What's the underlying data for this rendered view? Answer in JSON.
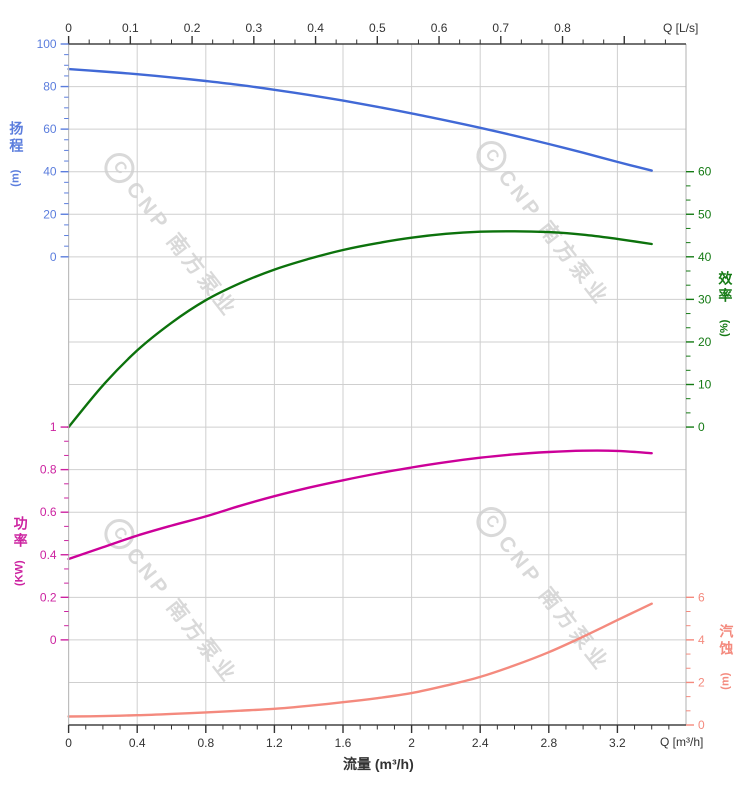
{
  "watermark": {
    "logo_char": "C",
    "text": "CNP 南方泵业"
  },
  "labels": {
    "x_axis_title": "流量 (m³/h)",
    "x_top_unit": "Q [L/s]",
    "x_bottom_unit": "Q [m³/h]"
  },
  "colors": {
    "grid": "#cfcfcf",
    "frame_dark": "#444444",
    "spine_gray": "#bdbdbd",
    "axis_text": "#333333",
    "head_curve": "#4169d6",
    "head_label": "#5b7ddd",
    "efficiency_curve": "#0c720c",
    "efficiency_label": "#147a14",
    "power_curve": "#cc0099",
    "power_label": "#cc22a0",
    "npsh_curve": "#f48a7e",
    "npsh_label": "#f48a7e"
  },
  "chart_data": {
    "type": "line",
    "title": "",
    "grid": true,
    "legend": "none",
    "x_bottom": {
      "title": "流量 (m³/h)",
      "unit_label": "Q [m³/h]",
      "min": 0,
      "max": 3.6,
      "major_step": 0.4,
      "minor_per_gap": 3,
      "tick_labels": [
        "0",
        "0.4",
        "0.8",
        "1.2",
        "1.6",
        "2",
        "2.4",
        "2.8",
        "3.2"
      ]
    },
    "x_top": {
      "unit_label": "Q [L/s]",
      "min": 0,
      "max": 1.0,
      "major_step": 0.1,
      "minor_per_gap": 2,
      "tick_labels": [
        "0",
        "0.1",
        "0.2",
        "0.3",
        "0.4",
        "0.5",
        "0.6",
        "0.7",
        "0.8"
      ]
    },
    "y_axes": [
      {
        "id": "head",
        "title": "扬程",
        "unit": "(m)",
        "side": "left",
        "color": "#5b7ddd",
        "top_value": 100,
        "bottom_value": 0,
        "top_row": 0,
        "bottom_row": 5,
        "tick_labels": [
          "100",
          "80",
          "60",
          "40",
          "20",
          "0"
        ],
        "minor_per_gap": 3
      },
      {
        "id": "efficiency",
        "title": "效率",
        "unit": "(%)",
        "side": "right",
        "color": "#147a14",
        "top_value": 60,
        "bottom_value": 0,
        "top_row": 3,
        "bottom_row": 9,
        "tick_labels": [
          "60",
          "50",
          "40",
          "30",
          "20",
          "10",
          "0"
        ],
        "minor_per_gap": 2
      },
      {
        "id": "power",
        "title": "功率",
        "unit": "(KW)",
        "side": "left",
        "color": "#cc22a0",
        "top_value": 1,
        "bottom_value": 0,
        "top_row": 9,
        "bottom_row": 14,
        "tick_labels": [
          "1",
          "0.8",
          "0.6",
          "0.4",
          "0.2",
          "0"
        ],
        "minor_per_gap": 2
      },
      {
        "id": "npsh",
        "title": "汽蚀",
        "unit": "(m)",
        "side": "right",
        "color": "#f48a7e",
        "top_value": 6,
        "bottom_value": 0,
        "top_row": 13,
        "bottom_row": 16,
        "tick_labels": [
          "6",
          "4",
          "2",
          "0"
        ],
        "minor_per_gap": 2
      }
    ],
    "series": [
      {
        "name": "head",
        "axis": "head",
        "color": "#4169d6",
        "x": [
          0,
          0.2,
          0.4,
          0.6,
          0.8,
          1.0,
          1.2,
          1.4,
          1.6,
          1.8,
          2.0,
          2.2,
          2.4,
          2.6,
          2.8,
          3.0,
          3.2,
          3.4
        ],
        "y": [
          88.2,
          87.1,
          85.8,
          84.3,
          82.6,
          80.7,
          78.5,
          76.1,
          73.4,
          70.5,
          67.4,
          64.1,
          60.6,
          56.9,
          53.0,
          48.9,
          44.6,
          40.5
        ]
      },
      {
        "name": "efficiency",
        "axis": "efficiency",
        "color": "#0c720c",
        "x": [
          0,
          0.2,
          0.4,
          0.6,
          0.8,
          1.0,
          1.2,
          1.4,
          1.6,
          1.8,
          2.0,
          2.2,
          2.4,
          2.6,
          2.8,
          3.0,
          3.2,
          3.4
        ],
        "y": [
          0,
          9.8,
          18.0,
          24.5,
          29.8,
          33.8,
          37.0,
          39.5,
          41.6,
          43.2,
          44.5,
          45.4,
          45.9,
          46.0,
          45.8,
          45.2,
          44.2,
          43.0
        ]
      },
      {
        "name": "power",
        "axis": "power",
        "color": "#cc0099",
        "x": [
          0,
          0.2,
          0.4,
          0.6,
          0.8,
          1.0,
          1.2,
          1.4,
          1.6,
          1.8,
          2.0,
          2.2,
          2.4,
          2.6,
          2.8,
          3.0,
          3.2,
          3.4
        ],
        "y": [
          0.38,
          0.435,
          0.49,
          0.537,
          0.58,
          0.63,
          0.675,
          0.715,
          0.75,
          0.782,
          0.81,
          0.835,
          0.856,
          0.872,
          0.883,
          0.889,
          0.888,
          0.877
        ]
      },
      {
        "name": "npsh",
        "axis": "npsh",
        "color": "#f48a7e",
        "x": [
          0,
          0.2,
          0.4,
          0.6,
          0.8,
          1.0,
          1.2,
          1.4,
          1.6,
          1.8,
          2.0,
          2.2,
          2.4,
          2.6,
          2.8,
          3.0,
          3.2,
          3.4
        ],
        "y": [
          0.4,
          0.42,
          0.46,
          0.52,
          0.59,
          0.67,
          0.76,
          0.9,
          1.07,
          1.26,
          1.5,
          1.85,
          2.26,
          2.8,
          3.42,
          4.15,
          4.93,
          5.7
        ]
      }
    ]
  }
}
